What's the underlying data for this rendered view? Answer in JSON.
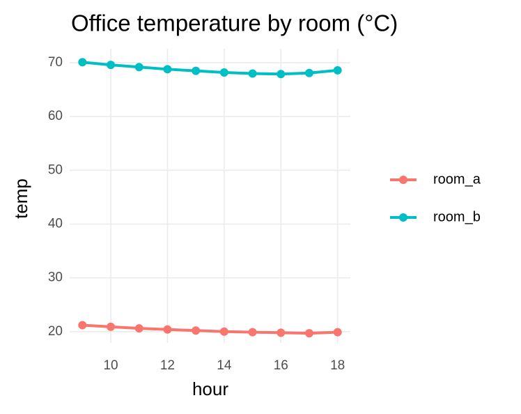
{
  "chart_data": {
    "type": "line",
    "title": "Office temperature by room (°C)",
    "x_label": "hour",
    "y_label": "temp",
    "x": [
      9,
      10,
      11,
      12,
      13,
      14,
      15,
      16,
      17,
      18
    ],
    "series": [
      {
        "name": "room_a",
        "color": "#f8766d",
        "values": [
          21.2,
          20.9,
          20.6,
          20.4,
          20.2,
          20.0,
          19.9,
          19.8,
          19.7,
          19.9
        ]
      },
      {
        "name": "room_b",
        "color": "#00bfc4",
        "values": [
          70.1,
          69.6,
          69.2,
          68.8,
          68.5,
          68.2,
          68.0,
          67.9,
          68.1,
          68.6
        ]
      }
    ],
    "xlim": [
      8.55,
      18.45
    ],
    "xticks": [
      10,
      12,
      14,
      16,
      18
    ],
    "ylim": [
      17.9,
      72.6
    ],
    "yticks": [
      20,
      30,
      40,
      50,
      60,
      70
    ],
    "grid": true,
    "legend": "right"
  }
}
